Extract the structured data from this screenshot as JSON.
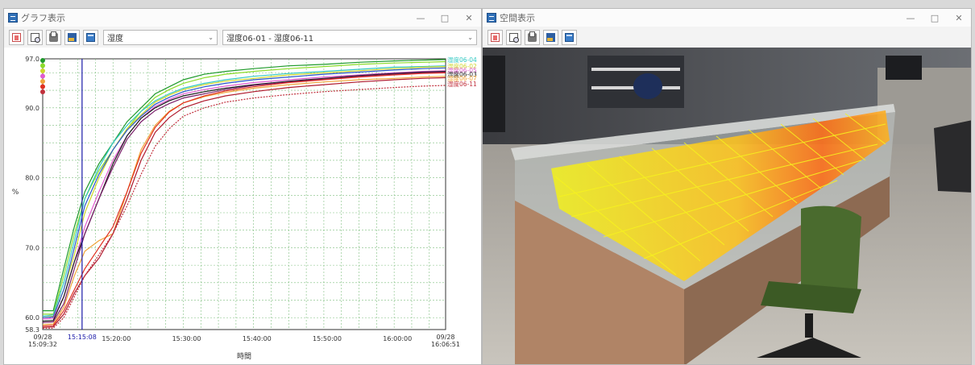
{
  "graph_window": {
    "title": "グラフ表示",
    "controls": {
      "minimize": "—",
      "maximize": "□",
      "close": "✕"
    },
    "toolbar": {
      "icons": [
        "new-icon",
        "preview-icon",
        "print-icon",
        "chart-icon",
        "window-icon"
      ],
      "metric_select": "湿度",
      "range_select": "湿度06-01 - 湿度06-11"
    }
  },
  "space_window": {
    "title": "空間表示",
    "controls": {
      "minimize": "—",
      "maximize": "□",
      "close": "✕"
    },
    "toolbar": {
      "icons": [
        "new-icon",
        "preview-icon",
        "print-icon",
        "chart-icon",
        "window-icon"
      ]
    }
  },
  "chart_data": {
    "type": "line",
    "ylabel": "%",
    "xlabel": "時間",
    "ylim": [
      58.3,
      97.0
    ],
    "y_ticks": [
      {
        "value": 58.3,
        "label": "58.3"
      },
      {
        "value": 60.0,
        "label": "60.0"
      },
      {
        "value": 70.0,
        "label": "70.0"
      },
      {
        "value": 80.0,
        "label": "80.0"
      },
      {
        "value": 90.0,
        "label": "90.0"
      },
      {
        "value": 97.0,
        "label": "97.0"
      }
    ],
    "xlim_minutes": [
      0,
      57.32
    ],
    "x_ticks": [
      {
        "t": 0,
        "line1": "09/28",
        "line2": "15:09:32"
      },
      {
        "t": 10.47,
        "line1": "",
        "line2": "15:20:00"
      },
      {
        "t": 20.47,
        "line1": "",
        "line2": "15:30:00"
      },
      {
        "t": 30.47,
        "line1": "",
        "line2": "15:40:00"
      },
      {
        "t": 40.47,
        "line1": "",
        "line2": "15:50:00"
      },
      {
        "t": 50.47,
        "line1": "",
        "line2": "16:00:00"
      },
      {
        "t": 57.32,
        "line1": "09/28",
        "line2": "16:06:51"
      }
    ],
    "cursor": {
      "t": 5.6,
      "label": "15:15:08",
      "color": "#1a1aa8"
    },
    "grid": true,
    "legend_position": "right",
    "legend_labels": [
      "湿度06-04",
      "湿度06-02",
      "湿度06-05",
      "湿度06-03",
      "湿度06-07",
      "湿度06-11"
    ],
    "x": [
      0,
      1.5,
      3,
      4.5,
      6,
      8,
      10,
      12,
      14,
      16,
      18,
      20,
      23,
      26,
      30,
      35,
      40,
      45,
      50,
      54,
      57.3
    ],
    "series": [
      {
        "name": "湿度06-04",
        "color": "#1f9a2b",
        "values": [
          61,
          61,
          67,
          73,
          78,
          82,
          85,
          88,
          90,
          92,
          93,
          94,
          94.8,
          95.2,
          95.6,
          96,
          96.2,
          96.5,
          96.7,
          96.8,
          96.9
        ]
      },
      {
        "color": "#8bdc2a",
        "values": [
          60.5,
          60.5,
          66,
          72,
          77,
          81,
          84,
          87,
          89.5,
          91.5,
          92.6,
          93.5,
          94.3,
          94.8,
          95.2,
          95.6,
          95.9,
          96.2,
          96.4,
          96.5,
          96.6
        ]
      },
      {
        "color": "#33c9c3",
        "values": [
          60.2,
          60.4,
          65,
          71,
          77,
          81.5,
          85,
          87.5,
          89.5,
          91,
          92,
          92.8,
          93.5,
          94,
          94.5,
          94.9,
          95.2,
          95.5,
          95.8,
          95.9,
          96
        ]
      },
      {
        "name": "湿度06-02",
        "color": "#cfd62b",
        "values": [
          60,
          60.2,
          64,
          69,
          75,
          80,
          84,
          87,
          89,
          90.8,
          91.8,
          92.6,
          93.3,
          93.8,
          94.2,
          94.7,
          95,
          95.3,
          95.6,
          95.8,
          95.9
        ]
      },
      {
        "color": "#2a56c9",
        "values": [
          60,
          60.1,
          64,
          70,
          76,
          80.5,
          84,
          86.8,
          88.8,
          90.5,
          91.5,
          92.3,
          93,
          93.5,
          94,
          94.4,
          94.8,
          95.1,
          95.4,
          95.6,
          95.7
        ]
      },
      {
        "name": "湿度06-05",
        "color": "#e25bd0",
        "values": [
          59.8,
          59.9,
          63,
          68,
          73,
          78,
          82.5,
          86,
          88.5,
          90.2,
          91.2,
          92,
          92.6,
          93.1,
          93.6,
          94,
          94.4,
          94.7,
          95,
          95.2,
          95.3
        ]
      },
      {
        "name": "湿度06-03",
        "color": "#1a1a1a",
        "values": [
          59.5,
          59.6,
          63,
          68,
          72,
          77,
          82,
          86,
          88.5,
          90,
          91,
          91.7,
          92.3,
          92.8,
          93.3,
          93.8,
          94.2,
          94.6,
          94.9,
          95.1,
          95.2
        ]
      },
      {
        "color": "#7a1f6a",
        "values": [
          59.3,
          59.4,
          62,
          67,
          72,
          77,
          81.5,
          85.5,
          88,
          89.6,
          90.6,
          91.4,
          92,
          92.6,
          93.2,
          93.7,
          94.1,
          94.5,
          94.8,
          95,
          95.1
        ]
      },
      {
        "name": "湿度06-07",
        "color": "#f0a43a",
        "values": [
          59,
          59.1,
          61.5,
          66,
          69.5,
          71,
          72,
          78,
          84,
          87.5,
          89.5,
          90.7,
          91.6,
          92.2,
          92.8,
          93.3,
          93.7,
          94,
          94.2,
          94.4,
          94.5
        ]
      },
      {
        "color": "#e03020",
        "values": [
          58.8,
          58.9,
          61,
          64,
          67,
          70,
          73,
          78,
          83.5,
          87.2,
          89.4,
          90.7,
          91.7,
          92.4,
          93,
          93.6,
          94,
          94.4,
          94.7,
          94.9,
          95
        ]
      },
      {
        "color": "#b01b2f",
        "values": [
          58.6,
          58.7,
          60.5,
          63.5,
          66,
          68.5,
          72,
          77,
          82.5,
          86.5,
          88.6,
          90,
          91,
          91.7,
          92.3,
          92.9,
          93.3,
          93.7,
          94,
          94.2,
          94.3
        ]
      },
      {
        "name": "湿度06-11",
        "color": "#c0303c",
        "dashed": true,
        "values": [
          58.5,
          58.5,
          60,
          63,
          66,
          69,
          72,
          76,
          80.5,
          84.5,
          87,
          88.8,
          90,
          90.8,
          91.4,
          91.9,
          92.3,
          92.6,
          92.9,
          93.1,
          93.2
        ]
      }
    ]
  }
}
